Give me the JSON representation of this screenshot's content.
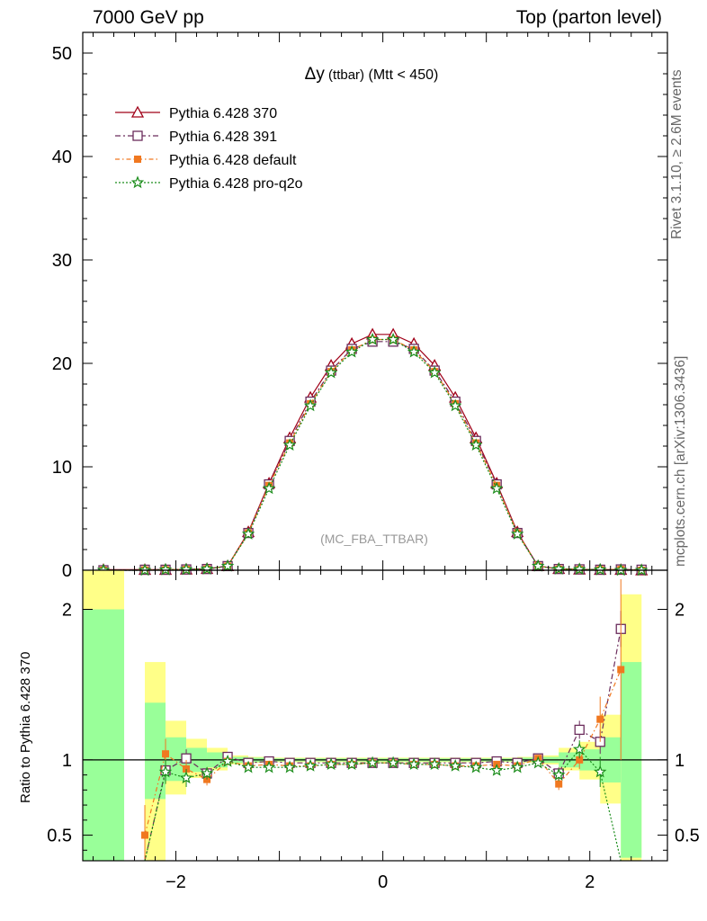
{
  "header": {
    "left": "7000 GeV pp",
    "right": "Top (parton level)"
  },
  "side_labels": {
    "rivet": "Rivet 3.1.10, ≥ 2.6M events",
    "mcplots": "mcplots.cern.ch [arXiv:1306.3436]"
  },
  "chart_data": [
    {
      "type": "line",
      "title_main": "Δy",
      "title_sub": " (ttbar)",
      "title_rest": " (Mtt < 450)",
      "watermark": "(MC_FBA_TTBAR)",
      "xlim": [
        -2.9,
        2.75
      ],
      "ylim": [
        0,
        52
      ],
      "yticks": [
        0,
        10,
        20,
        30,
        40,
        50
      ],
      "x": [
        -2.7,
        -2.3,
        -2.1,
        -1.9,
        -1.7,
        -1.5,
        -1.3,
        -1.1,
        -0.9,
        -0.7,
        -0.5,
        -0.3,
        -0.1,
        0.1,
        0.3,
        0.5,
        0.7,
        0.9,
        1.1,
        1.3,
        1.5,
        1.7,
        1.9,
        2.1,
        2.3,
        2.5
      ],
      "series": [
        {
          "name": "Pythia 6.428 370",
          "color": "#a00018",
          "marker": "triangle",
          "values": [
            0.05,
            0.05,
            0.05,
            0.08,
            0.13,
            0.4,
            3.7,
            8.4,
            12.8,
            16.7,
            19.8,
            21.9,
            22.8,
            22.8,
            21.9,
            19.8,
            16.7,
            12.8,
            8.4,
            3.7,
            0.4,
            0.13,
            0.08,
            0.05,
            0.05,
            0.0
          ]
        },
        {
          "name": "Pythia 6.428 391",
          "color": "#6b2c5c",
          "marker": "square",
          "values": [
            0.0,
            0.05,
            0.05,
            0.08,
            0.12,
            0.4,
            3.6,
            8.3,
            12.5,
            16.3,
            19.3,
            21.4,
            22.1,
            22.1,
            21.4,
            19.3,
            16.3,
            12.5,
            8.3,
            3.6,
            0.4,
            0.12,
            0.09,
            0.05,
            0.08,
            0.05
          ]
        },
        {
          "name": "Pythia 6.428 default",
          "color": "#f07820",
          "marker": "filled-square",
          "values": [
            0.0,
            0.03,
            0.05,
            0.08,
            0.12,
            0.4,
            3.6,
            8.2,
            12.3,
            16.1,
            19.2,
            21.3,
            22.3,
            22.3,
            21.3,
            19.2,
            16.1,
            12.3,
            8.2,
            3.6,
            0.4,
            0.11,
            0.08,
            0.06,
            0.08,
            0.0
          ]
        },
        {
          "name": "Pythia 6.428 pro-q2o",
          "color": "#1a8c1a",
          "marker": "star",
          "values": [
            0.0,
            0.0,
            0.05,
            0.07,
            0.12,
            0.4,
            3.5,
            7.9,
            12.1,
            15.9,
            19.1,
            21.1,
            22.3,
            22.3,
            21.1,
            19.1,
            15.9,
            12.1,
            7.9,
            3.5,
            0.4,
            0.12,
            0.09,
            0.05,
            0.0,
            0.0
          ]
        }
      ]
    },
    {
      "type": "line",
      "ylabel": "Ratio to Pythia 6.428 370",
      "xlim": [
        -2.9,
        2.75
      ],
      "ylim": [
        0.33,
        2.26
      ],
      "yticks": [
        0.5,
        1,
        2
      ],
      "ytick_labels": [
        "0.5",
        "1",
        "2"
      ],
      "xticks": [
        -2,
        0,
        2
      ],
      "xtick_labels": [
        "−2",
        "0",
        "2"
      ],
      "bands": {
        "edges": [
          -2.9,
          -2.7,
          -2.5,
          -2.3,
          -2.1,
          -1.9,
          -1.7,
          -1.5,
          -1.3,
          -1.1,
          -0.9,
          -0.7,
          -0.5,
          -0.3,
          -0.1,
          0.1,
          0.3,
          0.5,
          0.7,
          0.9,
          1.1,
          1.3,
          1.5,
          1.7,
          1.9,
          2.1,
          2.3,
          2.5
        ],
        "green_low": [
          0.33,
          0.33,
          null,
          0.74,
          0.86,
          0.92,
          0.95,
          0.98,
          0.985,
          0.99,
          0.99,
          0.99,
          0.99,
          0.99,
          0.99,
          0.99,
          0.99,
          0.99,
          0.99,
          0.99,
          0.99,
          0.985,
          0.98,
          0.95,
          0.93,
          0.85,
          0.35
        ],
        "green_high": [
          2.0,
          2.0,
          null,
          1.38,
          1.15,
          1.08,
          1.05,
          1.02,
          1.015,
          1.01,
          1.01,
          1.01,
          1.01,
          1.01,
          1.01,
          1.01,
          1.01,
          1.01,
          1.01,
          1.01,
          1.01,
          1.015,
          1.02,
          1.05,
          1.07,
          1.15,
          1.65
        ],
        "yellow_low": [
          0.33,
          0.33,
          null,
          0.33,
          0.77,
          0.88,
          0.93,
          0.97,
          0.98,
          0.985,
          0.985,
          0.985,
          0.985,
          0.985,
          0.985,
          0.985,
          0.985,
          0.985,
          0.985,
          0.985,
          0.985,
          0.98,
          0.97,
          0.93,
          0.87,
          0.71,
          0.33
        ],
        "yellow_high": [
          2.26,
          2.26,
          null,
          1.65,
          1.26,
          1.14,
          1.08,
          1.03,
          1.02,
          1.015,
          1.015,
          1.015,
          1.015,
          1.015,
          1.015,
          1.015,
          1.015,
          1.015,
          1.015,
          1.015,
          1.015,
          1.02,
          1.03,
          1.08,
          1.12,
          1.3,
          2.1
        ]
      },
      "x": [
        -2.3,
        -2.1,
        -1.9,
        -1.7,
        -1.5,
        -1.3,
        -1.1,
        -0.9,
        -0.7,
        -0.5,
        -0.3,
        -0.1,
        0.1,
        0.3,
        0.5,
        0.7,
        0.9,
        1.1,
        1.3,
        1.5,
        1.7,
        1.9,
        2.1,
        2.3
      ],
      "series": [
        {
          "name": "Pythia 6.428 391",
          "color": "#6b2c5c",
          "marker": "square",
          "values": [
            0.2,
            0.93,
            1.01,
            0.91,
            1.02,
            0.98,
            0.99,
            0.98,
            0.98,
            0.98,
            0.98,
            0.98,
            0.98,
            0.98,
            0.98,
            0.98,
            0.98,
            0.99,
            0.98,
            1.01,
            0.91,
            1.2,
            1.12,
            1.87
          ],
          "err": [
            0.0,
            0.07,
            0.06,
            0.04,
            0.02,
            0.01,
            0.01,
            0.01,
            0.01,
            0.01,
            0.01,
            0.01,
            0.01,
            0.01,
            0.01,
            0.01,
            0.01,
            0.01,
            0.01,
            0.02,
            0.04,
            0.06,
            0.08,
            0.12
          ]
        },
        {
          "name": "Pythia 6.428 default",
          "color": "#f07820",
          "marker": "filled-square",
          "values": [
            0.5,
            1.04,
            0.94,
            0.87,
            0.99,
            0.96,
            0.97,
            0.96,
            0.96,
            0.97,
            0.97,
            0.98,
            0.98,
            0.97,
            0.97,
            0.96,
            0.96,
            0.97,
            0.96,
            1.01,
            0.84,
            1.0,
            1.27,
            1.6
          ],
          "err": [
            0.2,
            0.1,
            0.06,
            0.04,
            0.02,
            0.01,
            0.01,
            0.01,
            0.01,
            0.01,
            0.01,
            0.01,
            0.01,
            0.01,
            0.01,
            0.01,
            0.01,
            0.01,
            0.01,
            0.02,
            0.04,
            0.06,
            0.15,
            0.6
          ]
        },
        {
          "name": "Pythia 6.428 pro-q2o",
          "color": "#1a8c1a",
          "marker": "star",
          "values": [
            0.2,
            0.92,
            0.88,
            0.91,
            0.99,
            0.95,
            0.95,
            0.95,
            0.96,
            0.97,
            0.97,
            0.98,
            0.98,
            0.97,
            0.97,
            0.96,
            0.95,
            0.93,
            0.95,
            0.98,
            0.9,
            1.07,
            0.92,
            0.2
          ],
          "err": [
            0.0,
            0.08,
            0.06,
            0.04,
            0.02,
            0.01,
            0.01,
            0.01,
            0.01,
            0.01,
            0.01,
            0.01,
            0.01,
            0.01,
            0.01,
            0.01,
            0.01,
            0.01,
            0.01,
            0.02,
            0.04,
            0.06,
            0.1,
            0.0
          ]
        }
      ]
    }
  ]
}
